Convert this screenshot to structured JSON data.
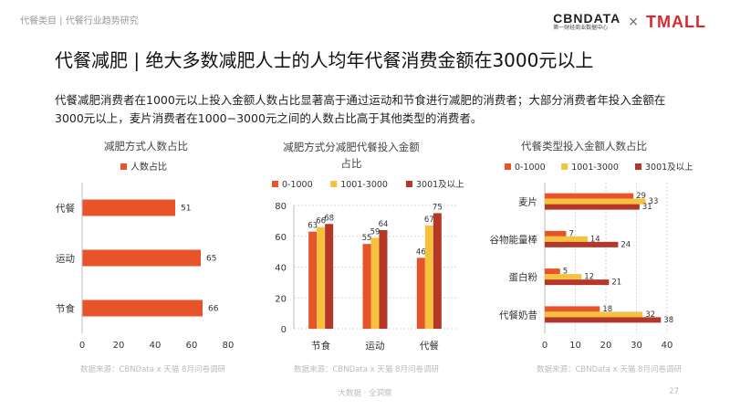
{
  "header": {
    "breadcrumb": "代餐类目 | 代餐行业趋势研究",
    "logo_cbn": "CBNDATA",
    "logo_cbn_sub": "第一财经商业数据中心",
    "logo_cross": "×",
    "logo_tmall": "TMALL"
  },
  "page_title": "代餐减肥 | 绝大多数减肥人士的人均年代餐消费金额在3000元以上",
  "description": "代餐减肥消费者在1000元以上投入金额人数占比显著高于通过运动和节食进行减肥的消费者；大部分消费者年投入金额在3000元以上，麦片消费者在1000−3000元之间的人数占比高于其他类型的消费者。",
  "sources": [
    "数据来源：CBNData x 天猫 8月问卷调研",
    "数据来源：CBNData x 天猫 8月问卷调研",
    "数据来源：CBNData x 天猫 8月问卷调研"
  ],
  "footer": "大数据 · 全洞察",
  "page_number": "27",
  "colors": {
    "c1": "#e8532a",
    "c2": "#f5c13e",
    "c3": "#b5372a"
  },
  "chart_data": [
    {
      "type": "bar",
      "orientation": "horizontal",
      "title": "减肥方式人数占比",
      "categories": [
        "代餐",
        "运动",
        "节食"
      ],
      "series": [
        {
          "name": "人数占比",
          "values": [
            51,
            65,
            66
          ]
        }
      ],
      "xlim": [
        0,
        80
      ],
      "xticks": [
        0,
        20,
        40,
        60,
        80
      ],
      "legend": "top"
    },
    {
      "type": "bar",
      "orientation": "vertical",
      "title": "减肥方式分减肥代餐投入金额占比",
      "categories": [
        "节食",
        "运动",
        "代餐"
      ],
      "series": [
        {
          "name": "0-1000",
          "values": [
            63,
            55,
            46
          ]
        },
        {
          "name": "1001-3000",
          "values": [
            66,
            59,
            67
          ]
        },
        {
          "name": "3001及以上",
          "values": [
            68,
            64,
            75
          ]
        }
      ],
      "ylim": [
        0,
        80
      ],
      "yticks": [
        0,
        20,
        40,
        60,
        80
      ],
      "legend": "top"
    },
    {
      "type": "bar",
      "orientation": "horizontal",
      "title": "代餐类型投入金额人数占比",
      "categories": [
        "麦片",
        "谷物能量棒",
        "蛋白粉",
        "代餐奶昔"
      ],
      "series": [
        {
          "name": "0-1000",
          "values": [
            29,
            7,
            5,
            18
          ]
        },
        {
          "name": "1001-3000",
          "values": [
            33,
            14,
            12,
            32
          ]
        },
        {
          "name": "3001及以上",
          "values": [
            31,
            24,
            21,
            38
          ]
        }
      ],
      "xlim": [
        0,
        40
      ],
      "xticks": [
        0,
        10,
        20,
        30,
        40
      ],
      "legend": "top"
    }
  ]
}
